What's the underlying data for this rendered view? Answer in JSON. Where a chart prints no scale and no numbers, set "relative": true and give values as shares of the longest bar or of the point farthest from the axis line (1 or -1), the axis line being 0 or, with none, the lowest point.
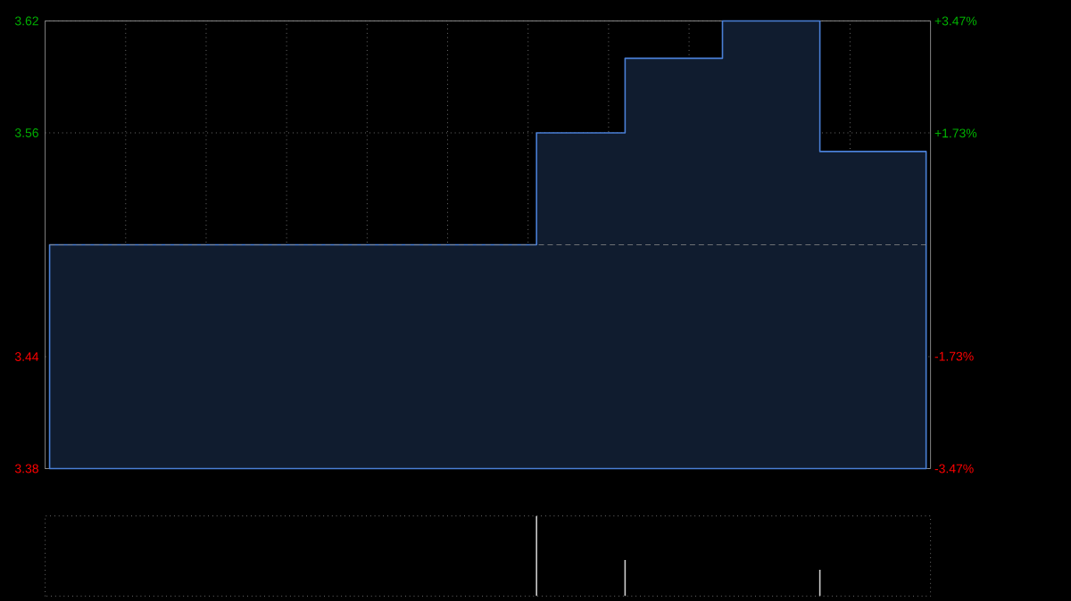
{
  "chart_data": [
    {
      "type": "area",
      "categories": [
        null,
        null,
        null,
        null,
        null,
        null,
        null,
        null,
        null,
        null,
        null,
        null,
        null,
        null,
        null,
        null,
        null,
        null,
        null,
        null,
        null,
        null,
        null,
        null,
        null,
        null,
        null,
        null,
        null,
        null,
        null,
        null,
        null,
        null,
        null,
        null,
        null,
        null,
        null,
        null,
        null,
        null,
        null,
        null,
        null,
        null,
        null,
        null,
        null,
        null,
        null,
        null,
        null,
        null,
        null,
        null,
        null,
        null,
        null,
        null,
        null,
        null,
        null,
        null,
        null,
        null,
        null,
        null,
        null,
        null,
        null,
        null,
        null,
        null,
        null,
        null,
        null,
        null,
        null,
        null,
        null,
        null,
        null,
        null,
        null,
        null,
        null,
        null,
        null,
        null,
        null,
        null,
        null,
        null,
        null,
        null,
        null,
        null,
        null,
        null
      ],
      "series": [
        {
          "color": "#4a7fd6",
          "values": [
            3.5,
            3.5,
            3.5,
            3.5,
            3.5,
            3.5,
            3.5,
            3.5,
            3.5,
            3.5,
            3.5,
            3.5,
            3.5,
            3.5,
            3.5,
            3.5,
            3.5,
            3.5,
            3.5,
            3.5,
            3.5,
            3.5,
            3.5,
            3.5,
            3.5,
            3.5,
            3.5,
            3.5,
            3.5,
            3.5,
            3.5,
            3.5,
            3.5,
            3.5,
            3.5,
            3.5,
            3.5,
            3.5,
            3.5,
            3.5,
            3.5,
            3.5,
            3.5,
            3.5,
            3.5,
            3.5,
            3.5,
            3.5,
            3.5,
            3.5,
            3.5,
            3.5,
            3.5,
            3.5,
            3.5,
            3.56,
            3.56,
            3.56,
            3.56,
            3.56,
            3.56,
            3.56,
            3.56,
            3.56,
            3.56,
            3.6,
            3.6,
            3.6,
            3.6,
            3.6,
            3.6,
            3.6,
            3.6,
            3.6,
            3.6,
            3.6,
            3.62,
            3.62,
            3.62,
            3.62,
            3.62,
            3.62,
            3.62,
            3.62,
            3.62,
            3.62,
            3.62,
            3.55,
            3.55,
            3.55,
            3.55,
            3.55,
            3.55,
            3.55,
            3.55,
            3.55,
            3.55,
            3.55,
            3.55,
            3.55
          ]
        }
      ],
      "ylim": [
        3.38,
        3.62
      ],
      "yticks": [
        3.38,
        3.44,
        3.56,
        3.62
      ],
      "y2lim": [
        -3.47,
        3.47
      ],
      "y2ticks": [
        {
          "value": -3.47,
          "label": "-3.47%"
        },
        {
          "value": -1.73,
          "label": "-1.73%"
        },
        {
          "value": 1.73,
          "label": "+1.73%"
        },
        {
          "value": 3.47,
          "label": "+3.47%"
        }
      ],
      "ref_lines": [
        {
          "axis": "y",
          "value": 3.5,
          "color": "#888888",
          "line_style": "dashed"
        }
      ],
      "grid": true
    },
    {
      "type": "bar",
      "relative": true,
      "categories": [
        null,
        null,
        null,
        null,
        null,
        null,
        null,
        null,
        null,
        null,
        null,
        null,
        null,
        null,
        null,
        null,
        null,
        null,
        null,
        null,
        null,
        null,
        null,
        null,
        null,
        null,
        null,
        null,
        null,
        null,
        null,
        null,
        null,
        null,
        null,
        null,
        null,
        null,
        null,
        null,
        null,
        null,
        null,
        null,
        null,
        null,
        null,
        null,
        null,
        null,
        null,
        null,
        null,
        null,
        null,
        null,
        null,
        null,
        null,
        null,
        null,
        null,
        null,
        null,
        null,
        null,
        null,
        null,
        null,
        null,
        null,
        null,
        null,
        null,
        null,
        null,
        null,
        null,
        null,
        null,
        null,
        null,
        null,
        null,
        null,
        null,
        null,
        null,
        null,
        null,
        null,
        null,
        null,
        null,
        null,
        null,
        null,
        null,
        null,
        null
      ],
      "values": [
        null,
        null,
        null,
        null,
        null,
        null,
        null,
        null,
        null,
        null,
        null,
        null,
        null,
        null,
        null,
        null,
        null,
        null,
        null,
        null,
        null,
        null,
        null,
        null,
        null,
        null,
        null,
        null,
        null,
        null,
        null,
        null,
        null,
        null,
        null,
        null,
        null,
        null,
        null,
        null,
        null,
        null,
        null,
        null,
        null,
        null,
        null,
        null,
        null,
        null,
        null,
        null,
        null,
        null,
        null,
        1,
        null,
        null,
        null,
        null,
        null,
        null,
        null,
        null,
        null,
        0.45,
        null,
        null,
        null,
        null,
        null,
        null,
        null,
        null,
        null,
        null,
        null,
        null,
        null,
        null,
        null,
        null,
        null,
        null,
        null,
        null,
        null,
        0.33,
        null,
        null,
        null,
        null,
        null,
        null,
        null,
        null,
        null,
        null,
        null,
        null
      ],
      "color": "#cccccc"
    }
  ]
}
